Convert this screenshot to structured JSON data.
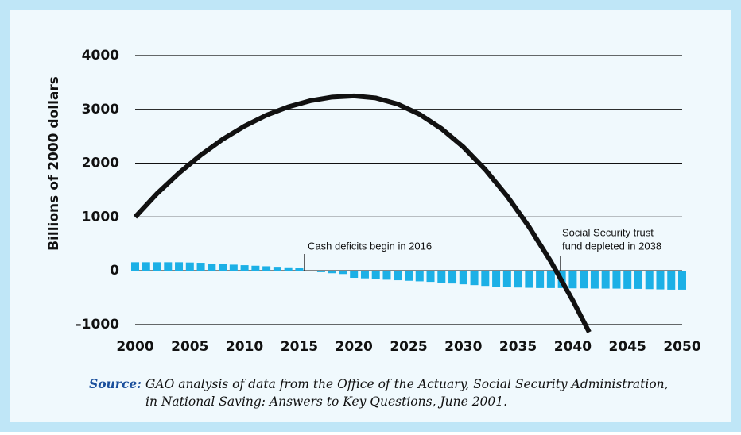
{
  "chart_data": {
    "type": "bar",
    "y_label": "Billions of 2000 dollars",
    "xlim": [
      2000,
      2050
    ],
    "xticks": [
      2000,
      2005,
      2010,
      2015,
      2020,
      2025,
      2030,
      2035,
      2040,
      2045,
      2050
    ],
    "ylim": [
      -1000,
      4000
    ],
    "yticks": [
      {
        "value": -1000,
        "label": "–1000"
      },
      0,
      1000,
      2000,
      3000,
      4000
    ],
    "grid": true,
    "series": [
      {
        "type": "bar",
        "color": "#1cb0e6",
        "x": [
          2000,
          2001,
          2002,
          2003,
          2004,
          2005,
          2006,
          2007,
          2008,
          2009,
          2010,
          2011,
          2012,
          2013,
          2014,
          2015,
          2016,
          2017,
          2018,
          2019,
          2020,
          2021,
          2022,
          2023,
          2024,
          2025,
          2026,
          2027,
          2028,
          2029,
          2030,
          2031,
          2032,
          2033,
          2034,
          2035,
          2036,
          2037,
          2038,
          2039,
          2040,
          2041,
          2042,
          2043,
          2044,
          2045,
          2046,
          2047,
          2048,
          2049,
          2050
        ],
        "values": [
          160,
          160,
          160,
          160,
          160,
          155,
          150,
          135,
          125,
          115,
          105,
          95,
          85,
          75,
          65,
          50,
          -10,
          -25,
          -45,
          -60,
          -130,
          -140,
          -155,
          -165,
          -175,
          -185,
          -195,
          -205,
          -220,
          -235,
          -250,
          -265,
          -280,
          -295,
          -305,
          -310,
          -315,
          -320,
          -320,
          -320,
          -325,
          -325,
          -330,
          -330,
          -330,
          -335,
          -335,
          -340,
          -345,
          -350,
          -350
        ]
      },
      {
        "type": "line",
        "color": "#111111",
        "x": [
          2000,
          2002,
          2004,
          2006,
          2008,
          2010,
          2012,
          2014,
          2016,
          2018,
          2020,
          2022,
          2024,
          2026,
          2028,
          2030,
          2032,
          2034,
          2036,
          2038,
          2040,
          2041.5
        ],
        "values": [
          1000,
          1436,
          1816,
          2152,
          2444,
          2690,
          2892,
          3048,
          3160,
          3228,
          3250,
          3212,
          3098,
          2908,
          2642,
          2300,
          1882,
          1388,
          818,
          172,
          -550,
          -1140
        ]
      }
    ],
    "annotations": [
      "Cash deficits begin in 2016",
      "Social Security trust",
      "fund depleted in 2038"
    ],
    "source_label": "Source:",
    "source_lines": [
      "GAO analysis of data from the Office of the Actuary, Social Security Administration,",
      "in National Saving: Answers to Key Questions, June 2001."
    ]
  }
}
